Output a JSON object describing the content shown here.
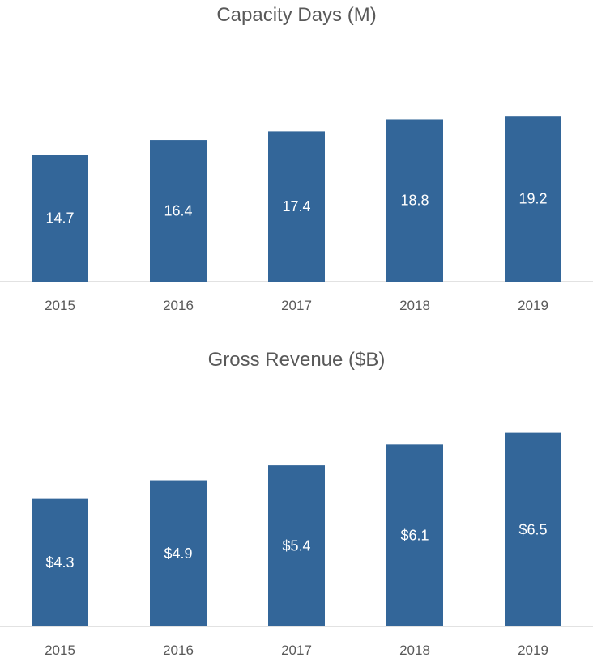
{
  "chart_data": [
    {
      "type": "bar",
      "title": "Capacity Days (M)",
      "categories": [
        "2015",
        "2016",
        "2017",
        "2018",
        "2019"
      ],
      "values": [
        14.7,
        16.4,
        17.4,
        18.8,
        19.2
      ],
      "data_labels": [
        "14.7",
        "16.4",
        "17.4",
        "18.8",
        "19.2"
      ],
      "ylim": [
        0,
        27
      ],
      "grid": false,
      "legend": "none",
      "bar_color": "#336699"
    },
    {
      "type": "bar",
      "title": "Gross Revenue ($B)",
      "categories": [
        "2015",
        "2016",
        "2017",
        "2018",
        "2019"
      ],
      "values": [
        4.3,
        4.9,
        5.4,
        6.1,
        6.5
      ],
      "data_labels": [
        "$4.3",
        "$4.9",
        "$5.4",
        "$6.1",
        "$6.5"
      ],
      "ylim": [
        0,
        8.2
      ],
      "grid": false,
      "legend": "none",
      "bar_color": "#336699"
    }
  ]
}
